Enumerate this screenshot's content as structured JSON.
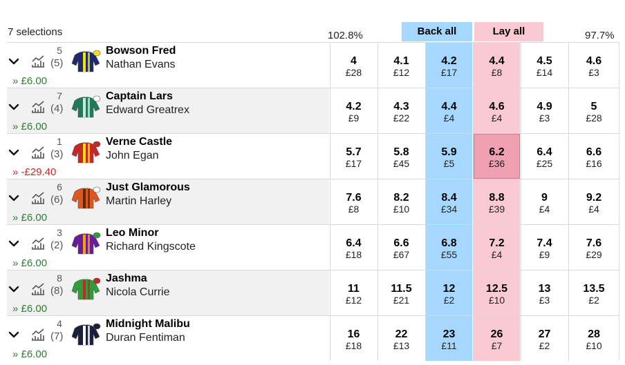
{
  "header": {
    "selections_label": "7 selections",
    "back_overround": "102.8%",
    "lay_overround": "97.7%",
    "back_all_label": "Back all",
    "lay_all_label": "Lay all"
  },
  "icons": {
    "expand": "chevron-down-icon",
    "form": "chart-icon"
  },
  "colors": {
    "back_best": "#a6d8ff",
    "lay_best": "#fac9d4",
    "lay_highlight": "#f0a0b1",
    "profit": "#2e7d32",
    "loss": "#c62828"
  },
  "runners": [
    {
      "saddle": "5",
      "draw": "(5)",
      "horse": "Bowson Fred",
      "jockey": "Nathan Evans",
      "pl": "» £6.00",
      "pl_sign": "pos",
      "silk": {
        "body": "#1a2a6c",
        "stripe": "#f5e20a",
        "cap": "#f5e20a"
      },
      "prices": [
        {
          "odds": "4",
          "amt": "£28"
        },
        {
          "odds": "4.1",
          "amt": "£12"
        },
        {
          "odds": "4.2",
          "amt": "£17"
        },
        {
          "odds": "4.4",
          "amt": "£8"
        },
        {
          "odds": "4.5",
          "amt": "£14"
        },
        {
          "odds": "4.6",
          "amt": "£3"
        }
      ]
    },
    {
      "saddle": "7",
      "draw": "(4)",
      "horse": "Captain Lars",
      "jockey": "Edward Greatrex",
      "pl": "» £6.00",
      "pl_sign": "pos",
      "silk": {
        "body": "#1f7a5a",
        "stripe": "#cfe8dc",
        "cap": "#ffffff"
      },
      "prices": [
        {
          "odds": "4.2",
          "amt": "£9"
        },
        {
          "odds": "4.3",
          "amt": "£22"
        },
        {
          "odds": "4.4",
          "amt": "£4"
        },
        {
          "odds": "4.6",
          "amt": "£4"
        },
        {
          "odds": "4.9",
          "amt": "£3"
        },
        {
          "odds": "5",
          "amt": "£28"
        }
      ]
    },
    {
      "saddle": "1",
      "draw": "(3)",
      "horse": "Verne Castle",
      "jockey": "John Egan",
      "pl": "» -£29.40",
      "pl_sign": "neg",
      "silk": {
        "body": "#c62828",
        "stripe": "#f5e20a",
        "cap": "#c62828"
      },
      "prices": [
        {
          "odds": "5.7",
          "amt": "£17"
        },
        {
          "odds": "5.8",
          "amt": "£45"
        },
        {
          "odds": "5.9",
          "amt": "£5"
        },
        {
          "odds": "6.2",
          "amt": "£36"
        },
        {
          "odds": "6.4",
          "amt": "£25"
        },
        {
          "odds": "6.6",
          "amt": "£16"
        }
      ]
    },
    {
      "saddle": "6",
      "draw": "(6)",
      "horse": "Just Glamorous",
      "jockey": "Martin Harley",
      "pl": "» £6.00",
      "pl_sign": "pos",
      "silk": {
        "body": "#e0561f",
        "stripe": "#5a2a10",
        "cap": "#ffffff"
      },
      "prices": [
        {
          "odds": "7.6",
          "amt": "£8"
        },
        {
          "odds": "8.2",
          "amt": "£10"
        },
        {
          "odds": "8.4",
          "amt": "£34"
        },
        {
          "odds": "8.8",
          "amt": "£39"
        },
        {
          "odds": "9",
          "amt": "£4"
        },
        {
          "odds": "9.2",
          "amt": "£4"
        }
      ]
    },
    {
      "saddle": "3",
      "draw": "(2)",
      "horse": "Leo Minor",
      "jockey": "Richard Kingscote",
      "pl": "» £6.00",
      "pl_sign": "pos",
      "silk": {
        "body": "#6a1b9a",
        "stripe": "#f5a20a",
        "cap": "#2e9e3a"
      },
      "prices": [
        {
          "odds": "6.4",
          "amt": "£18"
        },
        {
          "odds": "6.6",
          "amt": "£67"
        },
        {
          "odds": "6.8",
          "amt": "£55"
        },
        {
          "odds": "7.2",
          "amt": "£4"
        },
        {
          "odds": "7.4",
          "amt": "£9"
        },
        {
          "odds": "7.6",
          "amt": "£29"
        }
      ]
    },
    {
      "saddle": "8",
      "draw": "(8)",
      "horse": "Jashma",
      "jockey": "Nicola Currie",
      "pl": "» £6.00",
      "pl_sign": "pos",
      "silk": {
        "body": "#2e9e3a",
        "stripe": "#c62828",
        "cap": "#c62828"
      },
      "prices": [
        {
          "odds": "11",
          "amt": "£12"
        },
        {
          "odds": "11.5",
          "amt": "£21"
        },
        {
          "odds": "12",
          "amt": "£2"
        },
        {
          "odds": "12.5",
          "amt": "£10"
        },
        {
          "odds": "13",
          "amt": "£3"
        },
        {
          "odds": "13.5",
          "amt": "£2"
        }
      ]
    },
    {
      "saddle": "4",
      "draw": "(7)",
      "horse": "Midnight Malibu",
      "jockey": "Duran Fentiman",
      "pl": "» £6.00",
      "pl_sign": "pos",
      "silk": {
        "body": "#1c1f3a",
        "stripe": "#ffffff",
        "cap": "#1c1f3a"
      },
      "prices": [
        {
          "odds": "16",
          "amt": "£18"
        },
        {
          "odds": "22",
          "amt": "£13"
        },
        {
          "odds": "23",
          "amt": "£11"
        },
        {
          "odds": "26",
          "amt": "£7"
        },
        {
          "odds": "27",
          "amt": "£2"
        },
        {
          "odds": "28",
          "amt": "£10"
        }
      ]
    }
  ],
  "highlighted": {
    "runner": 2,
    "cell": 3
  }
}
